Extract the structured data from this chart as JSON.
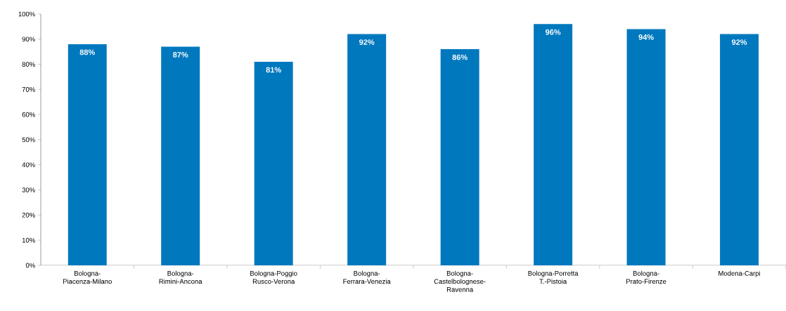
{
  "chart_data": {
    "type": "bar",
    "categories": [
      "Bologna-Piacenza-Milano",
      "Bologna-Rimini-Ancona",
      "Bologna-Poggio Rusco-Verona",
      "Bologna-Ferrara-Venezia",
      "Bologna-Castelbolognese-Ravenna",
      "Bologna-Porretta T.-Pistoia",
      "Bologna-Prato-Firenze",
      "Modena-Carpi"
    ],
    "values": [
      88,
      87,
      81,
      92,
      86,
      96,
      94,
      92
    ],
    "value_labels": [
      "88%",
      "87%",
      "81%",
      "92%",
      "86%",
      "96%",
      "94%",
      "92%"
    ],
    "color": "#0078be",
    "ylim": [
      0,
      100
    ],
    "yticks": [
      {
        "value": 0,
        "label": "0%"
      },
      {
        "value": 10,
        "label": "10%"
      },
      {
        "value": 20,
        "label": "20%"
      },
      {
        "value": 30,
        "label": "30%"
      },
      {
        "value": 40,
        "label": "40%"
      },
      {
        "value": 50,
        "label": "50%"
      },
      {
        "value": 60,
        "label": "60%"
      },
      {
        "value": 70,
        "label": "70%"
      },
      {
        "value": 80,
        "label": "80%"
      },
      {
        "value": 90,
        "label": "90%"
      },
      {
        "value": 100,
        "label": "100%"
      }
    ],
    "grid": false
  }
}
